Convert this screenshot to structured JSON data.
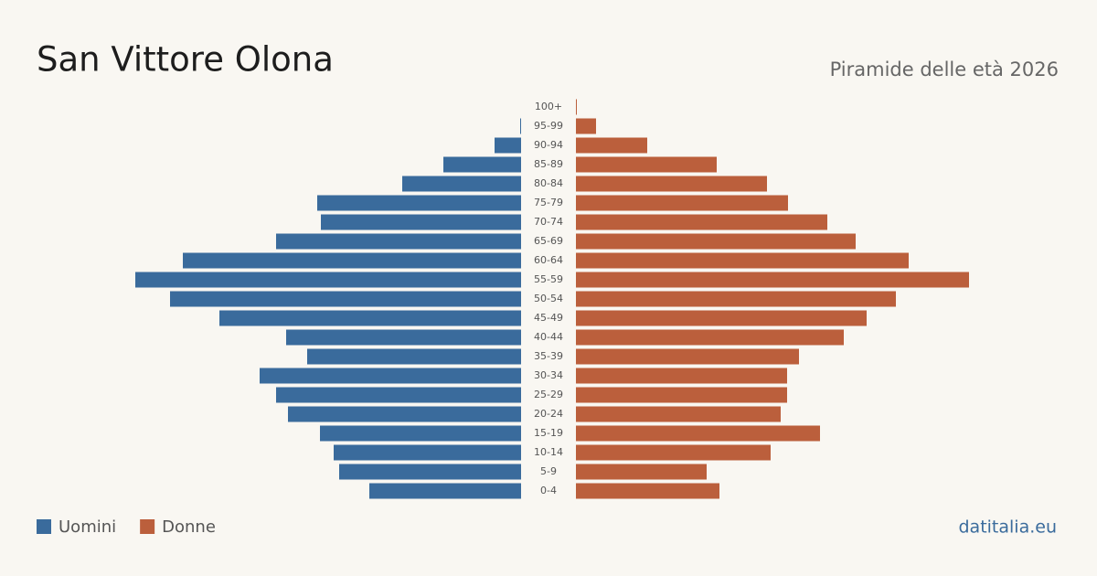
{
  "chart_data": {
    "type": "pyramid",
    "title": "San Vittore Olona",
    "subtitle": "Piramide delle età 2026",
    "source": "datitalia.eu",
    "categories": [
      "0-4",
      "5-9",
      "10-14",
      "15-19",
      "20-24",
      "25-29",
      "30-34",
      "35-39",
      "40-44",
      "45-49",
      "50-54",
      "55-59",
      "60-64",
      "65-69",
      "70-74",
      "75-79",
      "80-84",
      "85-89",
      "90-94",
      "95-99",
      "100+"
    ],
    "xlim": [
      0,
      440
    ],
    "series": [
      {
        "name": "Uomini",
        "color": "#3a6b9c",
        "values": [
          166,
          199,
          205,
          220,
          255,
          268,
          286,
          234,
          257,
          330,
          384,
          422,
          370,
          268,
          219,
          223,
          130,
          85,
          29,
          1,
          0
        ]
      },
      {
        "name": "Donne",
        "color": "#bb5f3c",
        "values": [
          157,
          143,
          213,
          267,
          224,
          231,
          231,
          244,
          293,
          318,
          350,
          430,
          364,
          306,
          275,
          232,
          209,
          154,
          78,
          22,
          1
        ]
      }
    ]
  }
}
